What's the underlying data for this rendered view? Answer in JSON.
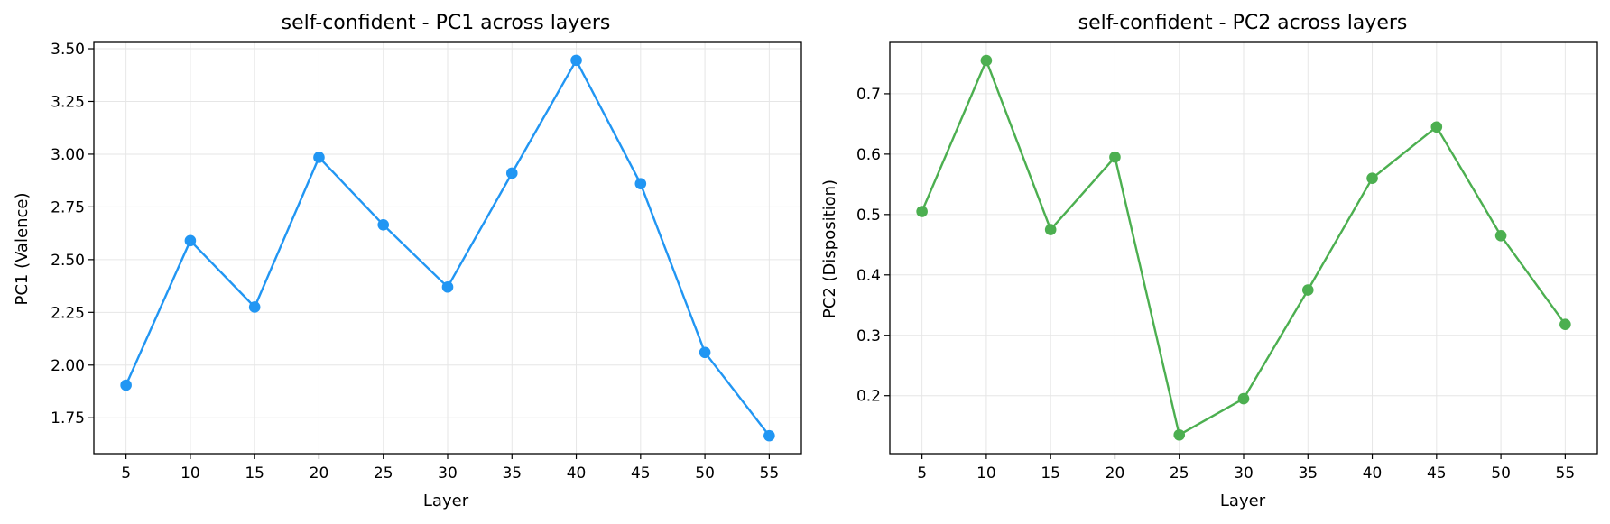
{
  "chart_data": [
    {
      "type": "line",
      "title": "self-confident - PC1 across layers",
      "xlabel": "Layer",
      "ylabel": "PC1 (Valence)",
      "x": [
        5,
        10,
        15,
        20,
        25,
        30,
        35,
        40,
        45,
        50,
        55
      ],
      "xticks": [
        "5",
        "10",
        "15",
        "20",
        "25",
        "30",
        "35",
        "40",
        "45",
        "50",
        "55"
      ],
      "yticks": [
        "1.75",
        "2.00",
        "2.25",
        "2.50",
        "2.75",
        "3.00",
        "3.25",
        "3.50"
      ],
      "xlim": [
        2.5,
        57.5
      ],
      "ylim": [
        1.58,
        3.53
      ],
      "grid": true,
      "color": "#2196F3",
      "series": [
        {
          "values": [
            1.905,
            2.59,
            2.275,
            2.985,
            2.665,
            2.37,
            2.91,
            3.445,
            2.86,
            2.06,
            1.665
          ]
        }
      ]
    },
    {
      "type": "line",
      "title": "self-confident - PC2 across layers",
      "xlabel": "Layer",
      "ylabel": "PC2 (Disposition)",
      "x": [
        5,
        10,
        15,
        20,
        25,
        30,
        35,
        40,
        45,
        50,
        55
      ],
      "xticks": [
        "5",
        "10",
        "15",
        "20",
        "25",
        "30",
        "35",
        "40",
        "45",
        "50",
        "55"
      ],
      "yticks": [
        "0.2",
        "0.3",
        "0.4",
        "0.5",
        "0.6",
        "0.7"
      ],
      "xlim": [
        2.5,
        57.5
      ],
      "ylim": [
        0.104,
        0.785
      ],
      "grid": true,
      "color": "#4CAF50",
      "series": [
        {
          "values": [
            0.505,
            0.755,
            0.475,
            0.595,
            0.135,
            0.195,
            0.375,
            0.56,
            0.645,
            0.465,
            0.318
          ]
        }
      ]
    }
  ]
}
